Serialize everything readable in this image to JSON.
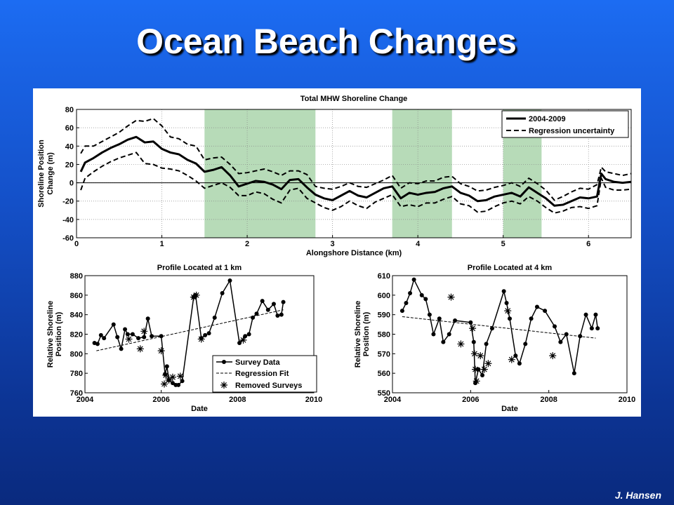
{
  "slide": {
    "title": "Ocean Beach Changes",
    "author": "J. Hansen"
  },
  "chart_data": [
    {
      "type": "line",
      "title": "Total MHW Shoreline Change",
      "xlabel": "Alongshore Distance (km)",
      "ylabel": "Shoreline Position Change (m)",
      "xlim": [
        0,
        6.5
      ],
      "ylim": [
        -60,
        80
      ],
      "xticks": [
        0,
        1,
        2,
        3,
        4,
        5,
        6
      ],
      "yticks": [
        -60,
        -40,
        -20,
        0,
        20,
        40,
        60,
        80
      ],
      "grid": true,
      "legend": "top-right",
      "highlight_color": "#b7dbb8",
      "highlight_bands": [
        [
          1.5,
          2.8
        ],
        [
          3.7,
          4.4
        ],
        [
          5.0,
          5.45
        ]
      ],
      "x": [
        0.05,
        0.1,
        0.2,
        0.3,
        0.4,
        0.5,
        0.6,
        0.7,
        0.8,
        0.9,
        1.0,
        1.1,
        1.2,
        1.3,
        1.4,
        1.5,
        1.6,
        1.7,
        1.8,
        1.9,
        2.0,
        2.1,
        2.2,
        2.3,
        2.4,
        2.5,
        2.6,
        2.7,
        2.8,
        2.9,
        3.0,
        3.1,
        3.2,
        3.3,
        3.4,
        3.5,
        3.6,
        3.7,
        3.8,
        3.9,
        4.0,
        4.1,
        4.2,
        4.3,
        4.4,
        4.5,
        4.6,
        4.7,
        4.8,
        4.9,
        5.0,
        5.1,
        5.2,
        5.3,
        5.4,
        5.5,
        5.6,
        5.7,
        5.8,
        5.9,
        6.0,
        6.1,
        6.15,
        6.2,
        6.3,
        6.4,
        6.5
      ],
      "series": [
        {
          "name": "2004-2009",
          "values": [
            12,
            22,
            27,
            33,
            38,
            42,
            47,
            50,
            44,
            45,
            37,
            33,
            31,
            25,
            21,
            12,
            14,
            17,
            8,
            -4,
            -1,
            2,
            1,
            -2,
            -7,
            3,
            4,
            -5,
            -13,
            -17,
            -19,
            -14,
            -9,
            -14,
            -16,
            -11,
            -6,
            -4,
            -17,
            -11,
            -13,
            -11,
            -10,
            -6,
            -4,
            -11,
            -14,
            -20,
            -19,
            -15,
            -13,
            -11,
            -15,
            -5,
            -11,
            -17,
            -25,
            -24,
            -20,
            -16,
            -17,
            -15,
            10,
            4,
            1,
            0,
            1
          ]
        },
        {
          "name": "Regression uncertainty",
          "values": [
            32,
            40,
            40,
            45,
            50,
            55,
            62,
            68,
            67,
            70,
            62,
            50,
            48,
            42,
            40,
            25,
            27,
            28,
            20,
            10,
            11,
            13,
            15,
            12,
            8,
            13,
            13,
            9,
            -4,
            -6,
            -7,
            -4,
            0,
            -4,
            -5,
            -1,
            3,
            8,
            -6,
            0,
            -1,
            2,
            2,
            6,
            7,
            -1,
            -4,
            -9,
            -8,
            -5,
            -3,
            0,
            -4,
            5,
            -1,
            -8,
            -19,
            -15,
            -10,
            -6,
            -7,
            -2,
            17,
            12,
            10,
            8,
            10
          ]
        },
        {
          "name": "",
          "values": [
            -8,
            5,
            12,
            18,
            23,
            27,
            30,
            33,
            21,
            20,
            16,
            15,
            13,
            8,
            2,
            -6,
            -3,
            0,
            -5,
            -14,
            -14,
            -10,
            -12,
            -18,
            -22,
            -8,
            -6,
            -17,
            -22,
            -27,
            -30,
            -26,
            -20,
            -25,
            -28,
            -21,
            -17,
            -13,
            -26,
            -24,
            -26,
            -22,
            -22,
            -18,
            -15,
            -23,
            -25,
            -32,
            -31,
            -26,
            -22,
            -20,
            -23,
            -15,
            -20,
            -27,
            -33,
            -31,
            -27,
            -26,
            -28,
            -25,
            5,
            -5,
            -8,
            -8,
            -7
          ]
        }
      ]
    },
    {
      "type": "scatter",
      "title": "Profile Located at 1 km",
      "xlabel": "Date",
      "ylabel": "Relative Shoreline Position (m)",
      "xlim": [
        2004,
        2010
      ],
      "ylim": [
        760,
        880
      ],
      "xticks": [
        2004,
        2006,
        2008,
        2010
      ],
      "yticks": [
        760,
        780,
        800,
        820,
        840,
        860,
        880
      ],
      "grid": false,
      "legend": "bottom-right",
      "series": [
        {
          "name": "Survey Data",
          "x": [
            2004.25,
            2004.33,
            2004.42,
            2004.5,
            2004.75,
            2004.85,
            2004.95,
            2005.05,
            2005.12,
            2005.25,
            2005.4,
            2005.55,
            2005.65,
            2005.75,
            2006.0,
            2006.1,
            2006.15,
            2006.2,
            2006.3,
            2006.38,
            2006.45,
            2006.55,
            2006.85,
            2006.9,
            2007.05,
            2007.15,
            2007.25,
            2007.4,
            2007.6,
            2007.8,
            2008.05,
            2008.2,
            2008.3,
            2008.4,
            2008.5,
            2008.65,
            2008.8,
            2008.95,
            2009.05,
            2009.15,
            2009.2
          ],
          "values": [
            811,
            810,
            819,
            816,
            830,
            817,
            805,
            825,
            820,
            820,
            816,
            817,
            836,
            818,
            818,
            779,
            787,
            773,
            770,
            768,
            768,
            772,
            858,
            860,
            816,
            819,
            821,
            837,
            862,
            875,
            811,
            818,
            820,
            837,
            841,
            854,
            845,
            851,
            839,
            840,
            853
          ]
        },
        {
          "name": "Regression Fit",
          "x": [
            2004.3,
            2009.2
          ],
          "values": [
            803,
            845
          ]
        },
        {
          "name": "Removed Surveys",
          "x": [
            2005.15,
            2005.45,
            2005.55,
            2006.0,
            2006.08,
            2006.12,
            2006.2,
            2006.3,
            2006.5,
            2006.85,
            2006.92,
            2007.05,
            2008.15
          ],
          "values": [
            815,
            805,
            823,
            803,
            769,
            778,
            773,
            776,
            777,
            858,
            860,
            815,
            814
          ]
        }
      ]
    },
    {
      "type": "scatter",
      "title": "Profile Located at 4 km",
      "xlabel": "Date",
      "ylabel": "Relative Shoreline Position (m)",
      "xlim": [
        2004,
        2010
      ],
      "ylim": [
        550,
        610
      ],
      "xticks": [
        2004,
        2006,
        2008,
        2010
      ],
      "yticks": [
        550,
        560,
        570,
        580,
        590,
        600,
        610
      ],
      "grid": false,
      "series": [
        {
          "name": "Survey Data",
          "x": [
            2004.25,
            2004.35,
            2004.45,
            2004.55,
            2004.75,
            2004.85,
            2004.95,
            2005.05,
            2005.2,
            2005.3,
            2005.45,
            2005.6,
            2006.0,
            2006.08,
            2006.12,
            2006.2,
            2006.3,
            2006.4,
            2006.55,
            2006.85,
            2006.92,
            2007.0,
            2007.15,
            2007.25,
            2007.4,
            2007.55,
            2007.7,
            2007.9,
            2008.15,
            2008.3,
            2008.45,
            2008.65,
            2008.8,
            2008.95,
            2009.1,
            2009.2,
            2009.25
          ],
          "values": [
            592,
            596,
            601,
            608,
            600,
            598,
            590,
            580,
            588,
            576,
            580,
            587,
            586,
            576,
            555,
            562,
            559,
            575,
            583,
            602,
            596,
            588,
            569,
            565,
            575,
            588,
            594,
            592,
            584,
            576,
            580,
            560,
            579,
            590,
            583,
            590,
            583
          ]
        },
        {
          "name": "Regression Fit",
          "x": [
            2004.25,
            2009.2
          ],
          "values": [
            589,
            578
          ]
        },
        {
          "name": "Removed Surveys",
          "x": [
            2005.5,
            2005.75,
            2006.05,
            2006.1,
            2006.12,
            2006.15,
            2006.25,
            2006.35,
            2006.45,
            2006.95,
            2007.05,
            2008.1
          ],
          "values": [
            599,
            575,
            583,
            570,
            562,
            556,
            569,
            562,
            565,
            592,
            567,
            569
          ]
        }
      ]
    }
  ]
}
